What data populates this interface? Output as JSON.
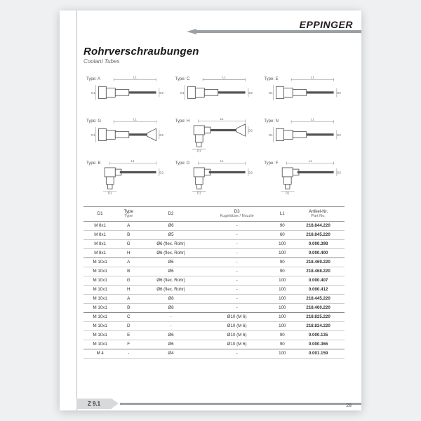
{
  "brand": "EPPINGER",
  "title": "Rohrverschraubungen",
  "subtitle": "Coolant Tubes",
  "section_tab": "Z 9.1",
  "page_number": "28",
  "diagram_types": [
    {
      "label": "Type: A",
      "shape": "straight"
    },
    {
      "label": "Type: C",
      "shape": "straight"
    },
    {
      "label": "Type: E",
      "shape": "straight"
    },
    {
      "label": "Type: G",
      "shape": "straight-flare"
    },
    {
      "label": "Type: H",
      "shape": "elbow-flare"
    },
    {
      "label": "Type: N",
      "shape": "straight"
    },
    {
      "label": "Type: B",
      "shape": "elbow"
    },
    {
      "label": "Type: D",
      "shape": "elbow"
    },
    {
      "label": "Type: F",
      "shape": "elbow"
    }
  ],
  "dim_labels": {
    "d1": "D1",
    "d2": "D2",
    "d3": "D3",
    "l1": "L1"
  },
  "table": {
    "headers": [
      {
        "main": "D1"
      },
      {
        "main": "Type",
        "sub": "Type"
      },
      {
        "main": "D2"
      },
      {
        "main": "D3",
        "sub": "Kugeldüse / Nozzle"
      },
      {
        "main": "L1"
      },
      {
        "main": "Artikel-Nr.",
        "sub": "Part No."
      }
    ],
    "rows": [
      {
        "d1": "M 8x1",
        "type": "A",
        "d2": "Ø6",
        "d3": "-",
        "l1": "90",
        "part": "218.844.220"
      },
      {
        "d1": "M 8x1",
        "type": "B",
        "d2": "Ø5",
        "d3": "-",
        "l1": "60",
        "part": "218.845.220"
      },
      {
        "d1": "M 8x1",
        "type": "G",
        "d2": "Ø6 (flex. Rohr)",
        "d3": "-",
        "l1": "100",
        "part": "0.000.398"
      },
      {
        "d1": "M 8x1",
        "type": "H",
        "d2": "Ø6 (flex. Rohr)",
        "d3": "-",
        "l1": "100",
        "part": "0.000.400",
        "sep": true
      },
      {
        "d1": "M 10x1",
        "type": "A",
        "d2": "Ø6",
        "d3": "-",
        "l1": "90",
        "part": "218.469.220"
      },
      {
        "d1": "M 10x1",
        "type": "B",
        "d2": "Ø6",
        "d3": "-",
        "l1": "90",
        "part": "218.468.220"
      },
      {
        "d1": "M 10x1",
        "type": "G",
        "d2": "Ø6 (flex. Rohr)",
        "d3": "-",
        "l1": "100",
        "part": "0.000.407"
      },
      {
        "d1": "M 10x1",
        "type": "H",
        "d2": "Ø6 (flex. Rohr)",
        "d3": "-",
        "l1": "100",
        "part": "0.000.412"
      },
      {
        "d1": "M 10x1",
        "type": "A",
        "d2": "Ø8",
        "d3": "-",
        "l1": "100",
        "part": "218.445.220"
      },
      {
        "d1": "M 10x1",
        "type": "B",
        "d2": "Ø8",
        "d3": "-",
        "l1": "100",
        "part": "218.460.220",
        "sep": true
      },
      {
        "d1": "M 10x1",
        "type": "C",
        "d2": "-",
        "d3": "Ø10 (M 6)",
        "l1": "100",
        "part": "218.825.220"
      },
      {
        "d1": "M 10x1",
        "type": "D",
        "d2": "-",
        "d3": "Ø10 (M 6)",
        "l1": "100",
        "part": "218.824.220"
      },
      {
        "d1": "M 10x1",
        "type": "E",
        "d2": "Ø6",
        "d3": "Ø10 (M 6)",
        "l1": "90",
        "part": "0.000.135"
      },
      {
        "d1": "M 10x1",
        "type": "F",
        "d2": "Ø6",
        "d3": "Ø10 (M 6)",
        "l1": "90",
        "part": "0.000.366",
        "sep": true
      },
      {
        "d1": "M 4",
        "type": "-",
        "d2": "Ø4",
        "d3": "-",
        "l1": "100",
        "part": "0.001.159"
      }
    ]
  },
  "colors": {
    "sheet_bg": "#ffffff",
    "page_bg": "#eef0f1",
    "rule": "#bdbdbd",
    "accent": "#9aa0a3",
    "text": "#333333"
  }
}
